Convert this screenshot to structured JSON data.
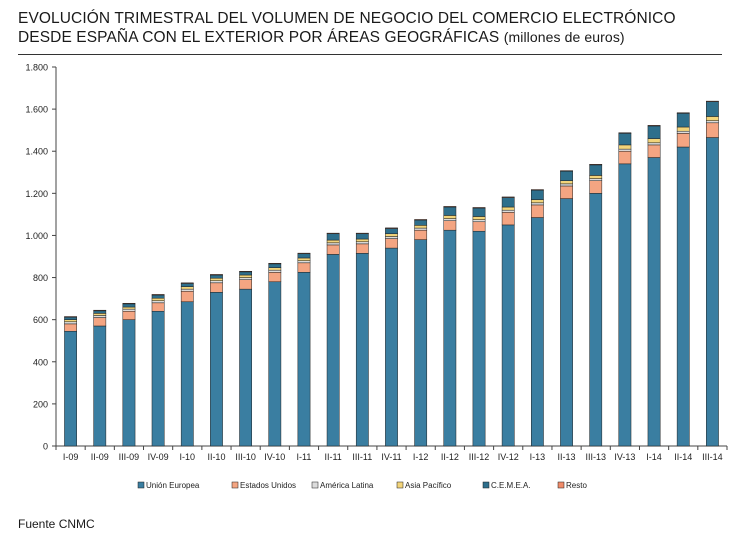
{
  "title_line1": "EVOLUCIÓN TRIMESTRAL DEL VOLUMEN DE NEGOCIO DEL COMERCIO ELECTRÓNICO",
  "title_line2": "DESDE ESPAÑA CON EL EXTERIOR POR ÁREAS GEOGRÁFICAS",
  "title_unit": "(millones de euros)",
  "source": "Fuente CNMC",
  "chart_data": {
    "type": "bar",
    "stacked": true,
    "title": "EVOLUCIÓN TRIMESTRAL DEL VOLUMEN DE NEGOCIO DEL COMERCIO ELECTRÓNICO DESDE ESPAÑA CON EL EXTERIOR POR ÁREAS GEOGRÁFICAS (millones de euros)",
    "xlabel": "",
    "ylabel": "",
    "ylim": [
      0,
      1800
    ],
    "yticks": [
      0,
      200,
      400,
      600,
      800,
      1000,
      1200,
      1400,
      1600,
      1800
    ],
    "ytick_labels": [
      "0",
      "200",
      "400",
      "600",
      "800",
      "1.000",
      "1.200",
      "1.400",
      "1.600",
      "1.800"
    ],
    "grid": false,
    "legend_position": "bottom",
    "categories": [
      "I-09",
      "II-09",
      "III-09",
      "IV-09",
      "I-10",
      "II-10",
      "III-10",
      "IV-10",
      "I-11",
      "II-11",
      "III-11",
      "IV-11",
      "I-12",
      "II-12",
      "III-12",
      "IV-12",
      "I-13",
      "II-13",
      "III-13",
      "IV-13",
      "I-14",
      "II-14",
      "III-14"
    ],
    "series": [
      {
        "name": "Unión Europea",
        "color": "#3a7ea1",
        "values": [
          545,
          570,
          600,
          640,
          685,
          730,
          745,
          780,
          825,
          910,
          915,
          940,
          980,
          1025,
          1020,
          1050,
          1085,
          1175,
          1200,
          1340,
          1370,
          1420,
          1465
        ]
      },
      {
        "name": "Estados Unidos",
        "color": "#f4a582",
        "values": [
          35,
          40,
          40,
          40,
          50,
          45,
          45,
          45,
          45,
          45,
          45,
          45,
          45,
          45,
          45,
          60,
          60,
          60,
          60,
          60,
          60,
          65,
          70
        ]
      },
      {
        "name": "América Latina",
        "color": "#dcdcdc",
        "values": [
          10,
          10,
          10,
          10,
          10,
          10,
          10,
          10,
          10,
          10,
          10,
          10,
          10,
          10,
          10,
          10,
          10,
          10,
          10,
          10,
          10,
          10,
          10
        ]
      },
      {
        "name": "Asia Pacífico",
        "color": "#f2d47a",
        "values": [
          10,
          10,
          10,
          12,
          12,
          12,
          12,
          12,
          13,
          13,
          13,
          13,
          13,
          15,
          15,
          15,
          15,
          15,
          15,
          20,
          20,
          20,
          20
        ]
      },
      {
        "name": "C.E.M.E.A.",
        "color": "#2e6f8c",
        "values": [
          12,
          12,
          15,
          15,
          15,
          15,
          15,
          18,
          20,
          30,
          25,
          25,
          25,
          40,
          40,
          45,
          45,
          45,
          50,
          55,
          60,
          65,
          70
        ]
      },
      {
        "name": "Resto",
        "color": "#f08c6a",
        "values": [
          3,
          3,
          3,
          3,
          3,
          3,
          3,
          3,
          3,
          3,
          3,
          3,
          3,
          3,
          3,
          3,
          3,
          3,
          3,
          3,
          3,
          3,
          3
        ]
      }
    ]
  }
}
